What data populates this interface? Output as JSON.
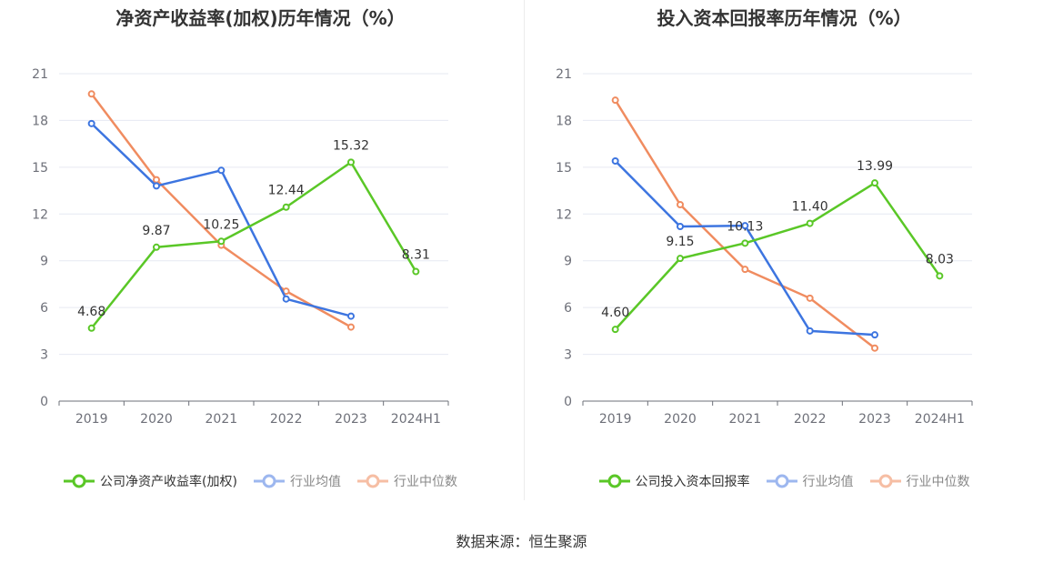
{
  "source": "数据来源：恒生聚源",
  "colors": {
    "company": "#5ac727",
    "industry_avg": "#3d75e0",
    "industry_median": "#f08c60"
  },
  "chart_data": [
    {
      "type": "line",
      "title": "净资产收益率(加权)历年情况（%）",
      "categories": [
        "2019",
        "2020",
        "2021",
        "2022",
        "2023",
        "2024H1"
      ],
      "ylim": [
        0,
        21
      ],
      "yticks": [
        "0",
        "3",
        "6",
        "9",
        "12",
        "15",
        "18",
        "21"
      ],
      "grid": true,
      "legend_position": "bottom",
      "series": [
        {
          "name": "公司净资产收益率(加权)",
          "values": [
            4.68,
            9.87,
            10.25,
            12.44,
            15.32,
            8.31
          ],
          "labels": [
            "4.68",
            "9.87",
            "10.25",
            "12.44",
            "15.32",
            "8.31"
          ]
        },
        {
          "name": "行业均值",
          "values": [
            17.8,
            13.8,
            14.8,
            6.55,
            5.45,
            null
          ]
        },
        {
          "name": "行业中位数",
          "values": [
            19.7,
            14.2,
            10.0,
            7.05,
            4.75,
            null
          ]
        }
      ]
    },
    {
      "type": "line",
      "title": "投入资本回报率历年情况（%）",
      "categories": [
        "2019",
        "2020",
        "2021",
        "2022",
        "2023",
        "2024H1"
      ],
      "ylim": [
        0,
        21
      ],
      "yticks": [
        "0",
        "3",
        "6",
        "9",
        "12",
        "15",
        "18",
        "21"
      ],
      "grid": true,
      "legend_position": "bottom",
      "series": [
        {
          "name": "公司投入资本回报率",
          "values": [
            4.6,
            9.15,
            10.13,
            11.4,
            13.99,
            8.03
          ],
          "labels": [
            "4.60",
            "9.15",
            "10.13",
            "11.40",
            "13.99",
            "8.03"
          ]
        },
        {
          "name": "行业均值",
          "values": [
            15.4,
            11.2,
            11.25,
            4.5,
            4.25,
            null
          ]
        },
        {
          "name": "行业中位数",
          "values": [
            19.3,
            12.6,
            8.45,
            6.6,
            3.4,
            null
          ]
        }
      ]
    }
  ]
}
